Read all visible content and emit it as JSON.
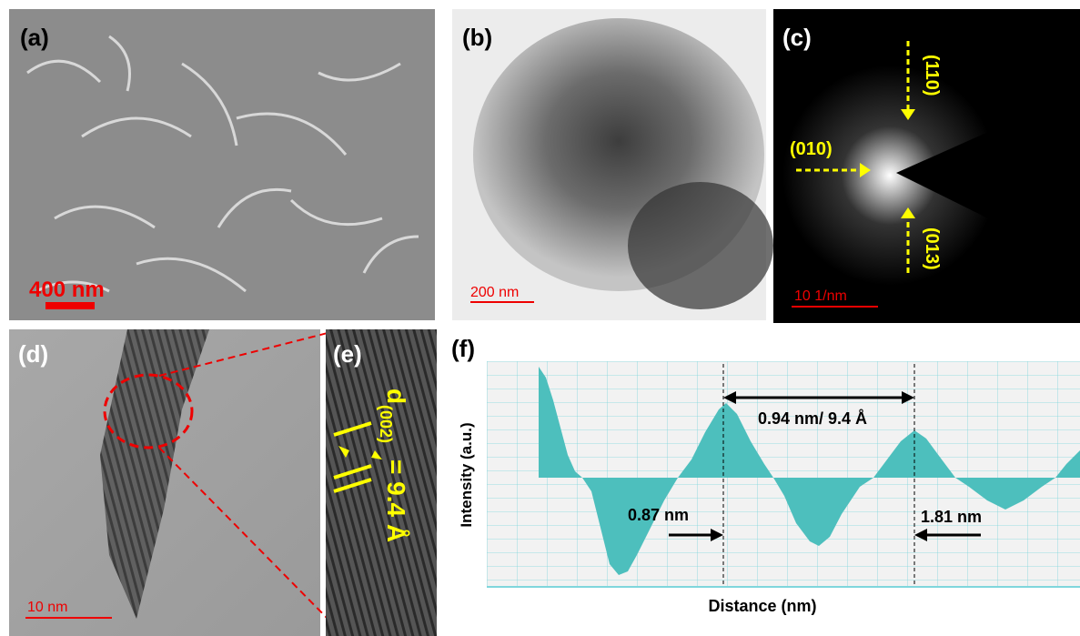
{
  "panels": {
    "a": {
      "label": "(a)",
      "scale": "400 nm"
    },
    "b": {
      "label": "(b)",
      "scale": "200 nm"
    },
    "c": {
      "label": "(c)",
      "rings": [
        "(110)",
        "(010)",
        "(013)"
      ],
      "scale": "10 1/nm"
    },
    "d": {
      "label": "(d)",
      "scale": "10 nm"
    },
    "e": {
      "label": "(e)",
      "spacing": {
        "symbol": "d",
        "subscript": "(002)",
        "value": "= 9.4 Å"
      }
    },
    "f": {
      "label": "(f)",
      "annotations": [
        "0.94 nm/ 9.4 Å",
        "0.87 nm",
        "1.81 nm"
      ],
      "y_label": "Intensity (a.u.)",
      "x_label": "Distance (nm)"
    }
  }
}
